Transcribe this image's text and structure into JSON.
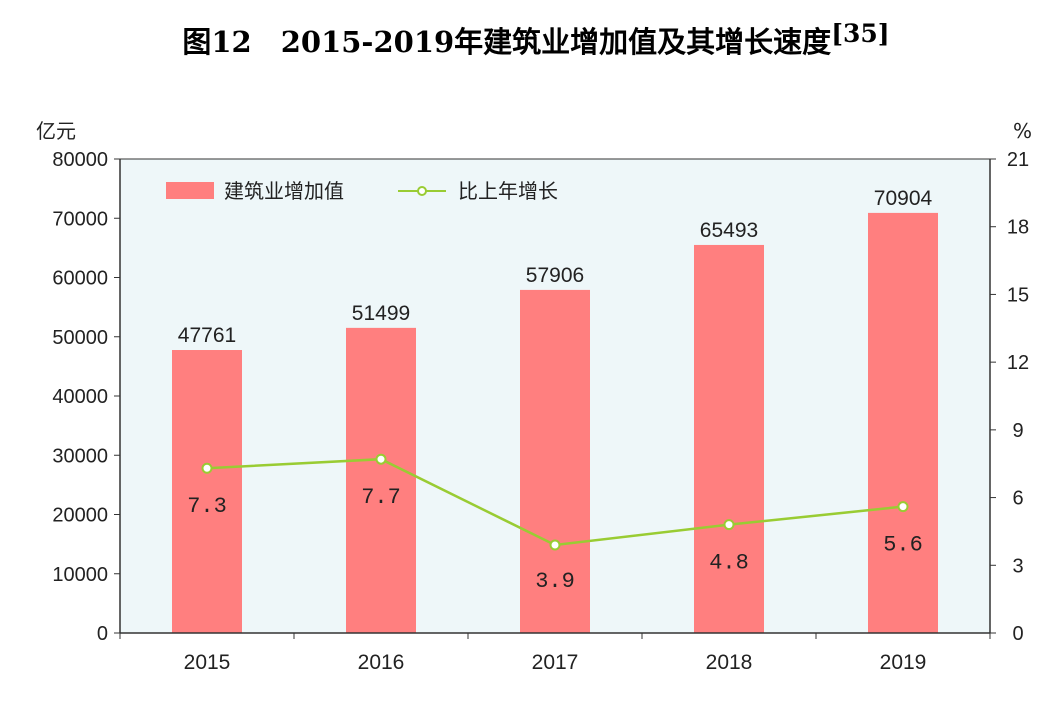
{
  "chart_data": {
    "type": "bar",
    "title_main": "图12　2015-2019年建筑业增加值及其增长速度",
    "title_sup": "[35]",
    "categories": [
      "2015",
      "2016",
      "2017",
      "2018",
      "2019"
    ],
    "series": [
      {
        "name": "建筑业增加值",
        "type": "bar",
        "axis": "left",
        "color": "#ff7f7f",
        "values": [
          47761,
          51499,
          57906,
          65493,
          70904
        ],
        "labels": [
          "47761",
          "51499",
          "57906",
          "65493",
          "70904"
        ]
      },
      {
        "name": "比上年增长",
        "type": "line",
        "axis": "right",
        "color": "#99cc33",
        "values": [
          7.3,
          7.7,
          3.9,
          4.8,
          5.6
        ],
        "labels": [
          "7.3",
          "7.7",
          "3.9",
          "4.8",
          "5.6"
        ]
      }
    ],
    "left_axis": {
      "unit": "亿元",
      "ylim": [
        0,
        80000
      ],
      "ticks": [
        "0",
        "10000",
        "20000",
        "30000",
        "40000",
        "50000",
        "60000",
        "70000",
        "80000"
      ]
    },
    "right_axis": {
      "unit": "%",
      "ylim": [
        0,
        21
      ],
      "ticks": [
        "0",
        "3",
        "6",
        "9",
        "12",
        "15",
        "18",
        "21"
      ]
    },
    "plot_background": "#eef7f9",
    "legend_position": "top-left",
    "grid": false
  }
}
